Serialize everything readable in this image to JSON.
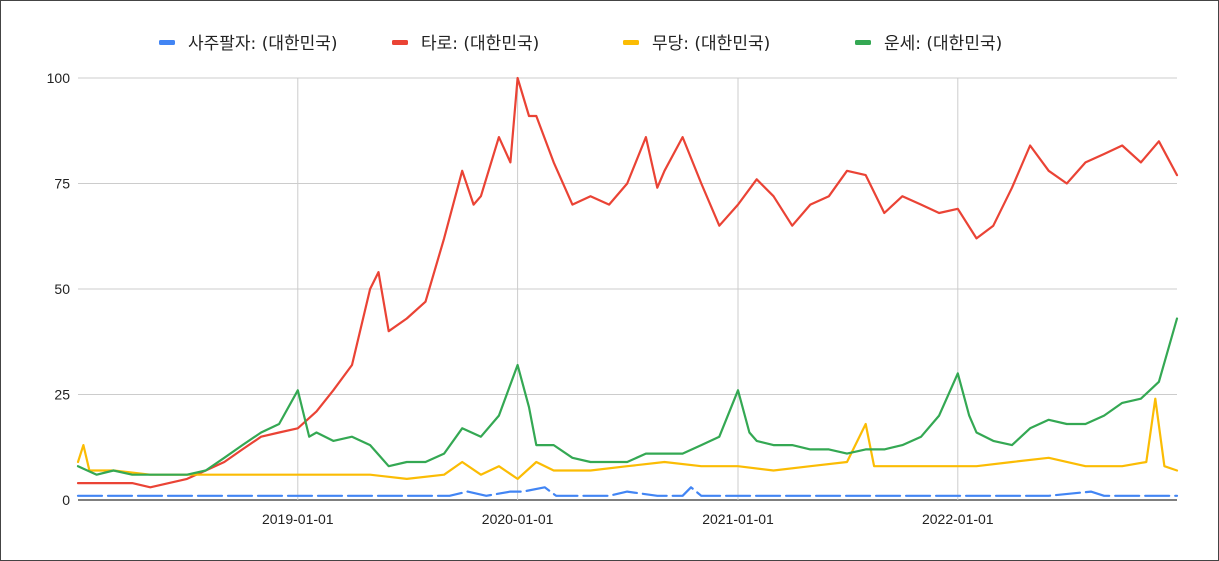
{
  "chart_data": {
    "type": "line",
    "title": "",
    "xlabel": "",
    "ylabel": "",
    "ylim": [
      0,
      100
    ],
    "yticks": [
      "0",
      "25",
      "50",
      "75",
      "100"
    ],
    "xticks": [
      "2019-01-01",
      "2020-01-01",
      "2021-01-01",
      "2022-01-01"
    ],
    "xlim": [
      "2018-01-01",
      "2022-12-31"
    ],
    "grid": true,
    "legend_position": "top",
    "series": [
      {
        "name": "사주팔자: (대한민국)",
        "color": "#4285f4",
        "points": [
          [
            "2018-01-01",
            1
          ],
          [
            "2018-06-01",
            1
          ],
          [
            "2019-01-01",
            1
          ],
          [
            "2019-06-01",
            1
          ],
          [
            "2019-09-10",
            1
          ],
          [
            "2019-10-10",
            2
          ],
          [
            "2019-11-10",
            1
          ],
          [
            "2019-12-20",
            2
          ],
          [
            "2020-01-10",
            2
          ],
          [
            "2020-02-15",
            3
          ],
          [
            "2020-03-05",
            1
          ],
          [
            "2020-06-01",
            1
          ],
          [
            "2020-07-01",
            2
          ],
          [
            "2020-08-20",
            1
          ],
          [
            "2020-10-01",
            1
          ],
          [
            "2020-10-15",
            3
          ],
          [
            "2020-11-01",
            1
          ],
          [
            "2021-01-01",
            1
          ],
          [
            "2021-06-01",
            1
          ],
          [
            "2021-09-01",
            1
          ],
          [
            "2021-12-01",
            1
          ],
          [
            "2022-03-01",
            1
          ],
          [
            "2022-06-01",
            1
          ],
          [
            "2022-08-10",
            2
          ],
          [
            "2022-09-01",
            1
          ],
          [
            "2022-12-31",
            1
          ]
        ]
      },
      {
        "name": "타로: (대한민국)",
        "color": "#ea4335",
        "points": [
          [
            "2018-01-01",
            4
          ],
          [
            "2018-02-01",
            4
          ],
          [
            "2018-03-01",
            4
          ],
          [
            "2018-04-01",
            4
          ],
          [
            "2018-05-01",
            3
          ],
          [
            "2018-06-01",
            4
          ],
          [
            "2018-07-01",
            5
          ],
          [
            "2018-08-01",
            7
          ],
          [
            "2018-09-01",
            9
          ],
          [
            "2018-10-01",
            12
          ],
          [
            "2018-11-01",
            15
          ],
          [
            "2018-12-01",
            16
          ],
          [
            "2019-01-01",
            17
          ],
          [
            "2019-02-01",
            21
          ],
          [
            "2019-03-01",
            26
          ],
          [
            "2019-04-01",
            32
          ],
          [
            "2019-05-01",
            50
          ],
          [
            "2019-05-15",
            54
          ],
          [
            "2019-06-01",
            40
          ],
          [
            "2019-07-01",
            43
          ],
          [
            "2019-08-01",
            47
          ],
          [
            "2019-09-01",
            62
          ],
          [
            "2019-10-01",
            78
          ],
          [
            "2019-10-20",
            70
          ],
          [
            "2019-11-01",
            72
          ],
          [
            "2019-12-01",
            86
          ],
          [
            "2019-12-20",
            80
          ],
          [
            "2020-01-01",
            100
          ],
          [
            "2020-01-20",
            91
          ],
          [
            "2020-02-01",
            91
          ],
          [
            "2020-03-01",
            80
          ],
          [
            "2020-04-01",
            70
          ],
          [
            "2020-05-01",
            72
          ],
          [
            "2020-06-01",
            70
          ],
          [
            "2020-07-01",
            75
          ],
          [
            "2020-08-01",
            86
          ],
          [
            "2020-08-20",
            74
          ],
          [
            "2020-09-01",
            78
          ],
          [
            "2020-10-01",
            86
          ],
          [
            "2020-11-01",
            75
          ],
          [
            "2020-12-01",
            65
          ],
          [
            "2021-01-01",
            70
          ],
          [
            "2021-02-01",
            76
          ],
          [
            "2021-03-01",
            72
          ],
          [
            "2021-04-01",
            65
          ],
          [
            "2021-05-01",
            70
          ],
          [
            "2021-06-01",
            72
          ],
          [
            "2021-07-01",
            78
          ],
          [
            "2021-08-01",
            77
          ],
          [
            "2021-09-01",
            68
          ],
          [
            "2021-10-01",
            72
          ],
          [
            "2021-11-01",
            70
          ],
          [
            "2021-12-01",
            68
          ],
          [
            "2022-01-01",
            69
          ],
          [
            "2022-02-01",
            62
          ],
          [
            "2022-03-01",
            65
          ],
          [
            "2022-04-01",
            74
          ],
          [
            "2022-05-01",
            84
          ],
          [
            "2022-06-01",
            78
          ],
          [
            "2022-07-01",
            75
          ],
          [
            "2022-08-01",
            80
          ],
          [
            "2022-09-01",
            82
          ],
          [
            "2022-10-01",
            84
          ],
          [
            "2022-11-01",
            80
          ],
          [
            "2022-12-01",
            85
          ],
          [
            "2022-12-31",
            77
          ]
        ]
      },
      {
        "name": "무당: (대한민국)",
        "color": "#fbbc04",
        "points": [
          [
            "2018-01-01",
            9
          ],
          [
            "2018-01-10",
            13
          ],
          [
            "2018-01-20",
            7
          ],
          [
            "2018-03-01",
            7
          ],
          [
            "2018-05-01",
            6
          ],
          [
            "2018-07-01",
            6
          ],
          [
            "2018-09-01",
            6
          ],
          [
            "2018-11-01",
            6
          ],
          [
            "2019-01-01",
            6
          ],
          [
            "2019-03-01",
            6
          ],
          [
            "2019-05-01",
            6
          ],
          [
            "2019-07-01",
            5
          ],
          [
            "2019-09-01",
            6
          ],
          [
            "2019-10-01",
            9
          ],
          [
            "2019-11-01",
            6
          ],
          [
            "2019-12-01",
            8
          ],
          [
            "2020-01-01",
            5
          ],
          [
            "2020-02-01",
            9
          ],
          [
            "2020-03-01",
            7
          ],
          [
            "2020-05-01",
            7
          ],
          [
            "2020-07-01",
            8
          ],
          [
            "2020-09-01",
            9
          ],
          [
            "2020-11-01",
            8
          ],
          [
            "2021-01-01",
            8
          ],
          [
            "2021-03-01",
            7
          ],
          [
            "2021-05-01",
            8
          ],
          [
            "2021-07-01",
            9
          ],
          [
            "2021-08-01",
            18
          ],
          [
            "2021-08-15",
            8
          ],
          [
            "2021-10-01",
            8
          ],
          [
            "2021-12-01",
            8
          ],
          [
            "2022-02-01",
            8
          ],
          [
            "2022-04-01",
            9
          ],
          [
            "2022-06-01",
            10
          ],
          [
            "2022-08-01",
            8
          ],
          [
            "2022-10-01",
            8
          ],
          [
            "2022-11-10",
            9
          ],
          [
            "2022-11-25",
            24
          ],
          [
            "2022-12-10",
            8
          ],
          [
            "2022-12-31",
            7
          ]
        ]
      },
      {
        "name": "운세: (대한민국)",
        "color": "#34a853",
        "points": [
          [
            "2018-01-01",
            8
          ],
          [
            "2018-02-01",
            6
          ],
          [
            "2018-03-01",
            7
          ],
          [
            "2018-04-01",
            6
          ],
          [
            "2018-05-01",
            6
          ],
          [
            "2018-06-01",
            6
          ],
          [
            "2018-07-01",
            6
          ],
          [
            "2018-08-01",
            7
          ],
          [
            "2018-09-01",
            10
          ],
          [
            "2018-10-01",
            13
          ],
          [
            "2018-11-01",
            16
          ],
          [
            "2018-12-01",
            18
          ],
          [
            "2019-01-01",
            26
          ],
          [
            "2019-01-20",
            15
          ],
          [
            "2019-02-01",
            16
          ],
          [
            "2019-03-01",
            14
          ],
          [
            "2019-04-01",
            15
          ],
          [
            "2019-05-01",
            13
          ],
          [
            "2019-06-01",
            8
          ],
          [
            "2019-07-01",
            9
          ],
          [
            "2019-08-01",
            9
          ],
          [
            "2019-09-01",
            11
          ],
          [
            "2019-10-01",
            17
          ],
          [
            "2019-11-01",
            15
          ],
          [
            "2019-12-01",
            20
          ],
          [
            "2020-01-01",
            32
          ],
          [
            "2020-01-20",
            22
          ],
          [
            "2020-02-01",
            13
          ],
          [
            "2020-03-01",
            13
          ],
          [
            "2020-04-01",
            10
          ],
          [
            "2020-05-01",
            9
          ],
          [
            "2020-06-01",
            9
          ],
          [
            "2020-07-01",
            9
          ],
          [
            "2020-08-01",
            11
          ],
          [
            "2020-09-01",
            11
          ],
          [
            "2020-10-01",
            11
          ],
          [
            "2020-11-01",
            13
          ],
          [
            "2020-12-01",
            15
          ],
          [
            "2021-01-01",
            26
          ],
          [
            "2021-01-20",
            16
          ],
          [
            "2021-02-01",
            14
          ],
          [
            "2021-03-01",
            13
          ],
          [
            "2021-04-01",
            13
          ],
          [
            "2021-05-01",
            12
          ],
          [
            "2021-06-01",
            12
          ],
          [
            "2021-07-01",
            11
          ],
          [
            "2021-08-01",
            12
          ],
          [
            "2021-09-01",
            12
          ],
          [
            "2021-10-01",
            13
          ],
          [
            "2021-11-01",
            15
          ],
          [
            "2021-12-01",
            20
          ],
          [
            "2022-01-01",
            30
          ],
          [
            "2022-01-20",
            20
          ],
          [
            "2022-02-01",
            16
          ],
          [
            "2022-03-01",
            14
          ],
          [
            "2022-04-01",
            13
          ],
          [
            "2022-05-01",
            17
          ],
          [
            "2022-06-01",
            19
          ],
          [
            "2022-07-01",
            18
          ],
          [
            "2022-08-01",
            18
          ],
          [
            "2022-09-01",
            20
          ],
          [
            "2022-10-01",
            23
          ],
          [
            "2022-11-01",
            24
          ],
          [
            "2022-12-01",
            28
          ],
          [
            "2022-12-31",
            43
          ]
        ]
      }
    ]
  }
}
